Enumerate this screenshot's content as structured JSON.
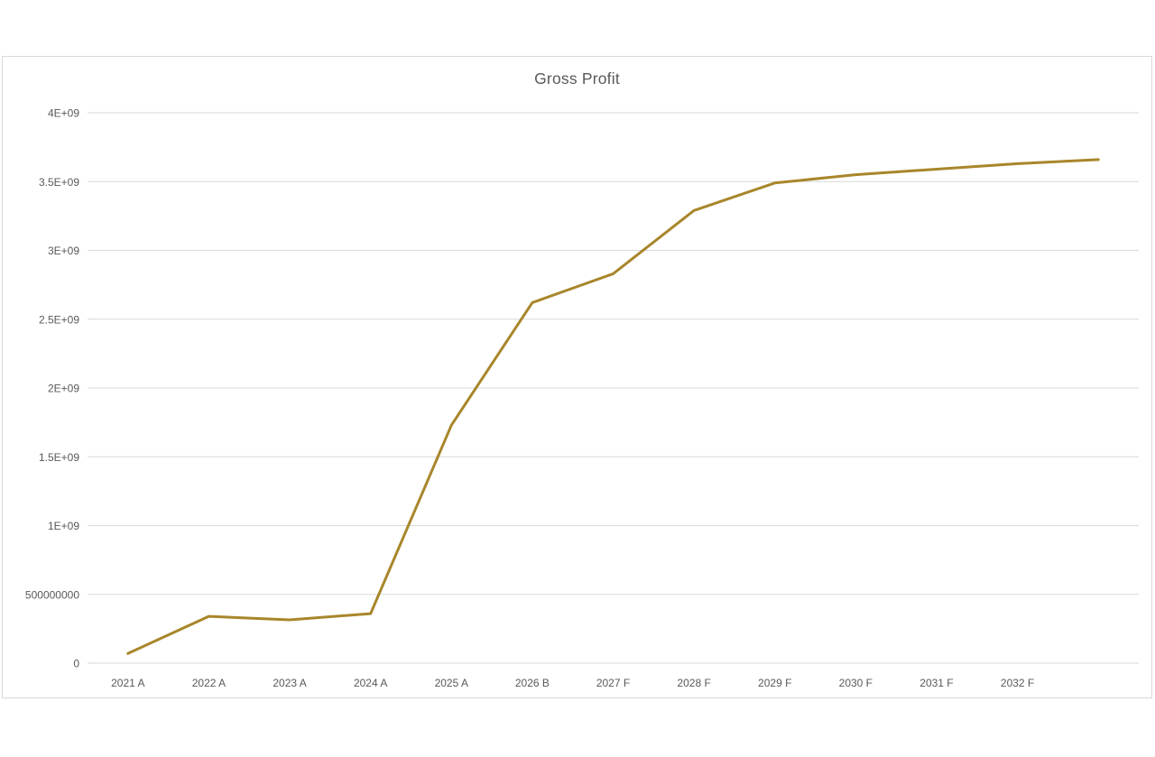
{
  "chart": {
    "styles": {
      "title_color": "#595959",
      "tick_label_color": "#595959",
      "gridline_color": "#d9d9d9",
      "frame_border_color": "#d9d9d9",
      "series_color": "#a8862b",
      "series_stroke_width": 3,
      "background": "#ffffff"
    }
  },
  "chart_data": {
    "type": "line",
    "title": "Gross Profit",
    "categories": [
      "2021 A",
      "2022 A",
      "2023 A",
      "2024 A",
      "2025 A",
      "2026 B",
      "2027 F",
      "2028 F",
      "2029 F",
      "2030 F",
      "2031 F",
      "2032 F",
      ""
    ],
    "series": [
      {
        "name": "Gross Profit",
        "values": [
          70000000,
          340000000,
          315000000,
          360000000,
          1730000000,
          2620000000,
          2830000000,
          3290000000,
          3490000000,
          3550000000,
          3590000000,
          3630000000,
          3660000000
        ]
      }
    ],
    "xlabel": "",
    "ylabel": "",
    "ylim": [
      0,
      4000000000
    ],
    "y_tick_interval": 500000000,
    "y_tick_labels": [
      "0",
      "500000000",
      "1E+09",
      "1.5E+09",
      "2E+09",
      "2.5E+09",
      "3E+09",
      "3.5E+09",
      "4E+09"
    ],
    "grid": true,
    "legend": false
  }
}
